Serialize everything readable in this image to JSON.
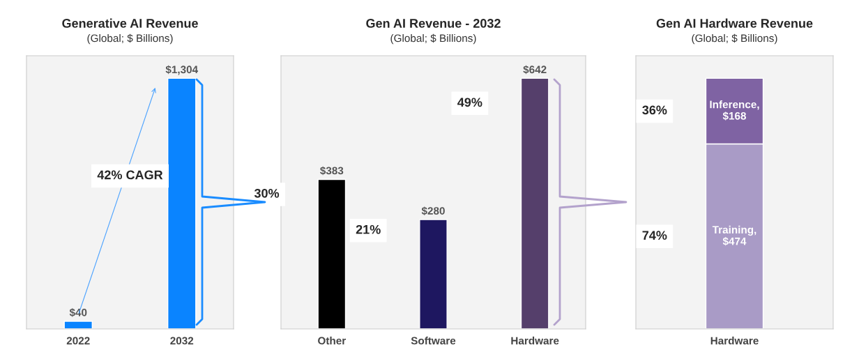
{
  "chart_data": [
    {
      "type": "bar",
      "title": "Generative AI Revenue",
      "subtitle": "(Global; $ Billions)",
      "categories": [
        "2022",
        "2032"
      ],
      "values": [
        40,
        1304
      ],
      "color": "#0a84ff",
      "value_labels": [
        "$40",
        "$1,304"
      ],
      "annotations": [
        "42% CAGR"
      ]
    },
    {
      "type": "bar",
      "title": "Gen AI Revenue - 2032",
      "subtitle": "(Global; $ Billions)",
      "categories": [
        "Other",
        "Software",
        "Hardware"
      ],
      "values": [
        383,
        280,
        642
      ],
      "colors": [
        "#000000",
        "#1e1760",
        "#553f6b"
      ],
      "value_labels": [
        "$383",
        "$280",
        "$642"
      ],
      "annotations": [
        "30%",
        "21%",
        "49%"
      ]
    },
    {
      "type": "bar",
      "stacked": true,
      "title": "Gen AI Hardware Revenue",
      "subtitle": "(Global; $ Billions)",
      "categories": [
        "Hardware"
      ],
      "series": [
        {
          "color": "#a99bc6",
          "values": [
            474
          ],
          "value_labels": [
            "Training,\n$474"
          ]
        },
        {
          "color": "#7f63a3",
          "values": [
            168
          ],
          "value_labels": [
            "Inference,\n$168"
          ]
        }
      ],
      "annotations": [
        "74%",
        "36%"
      ]
    }
  ]
}
